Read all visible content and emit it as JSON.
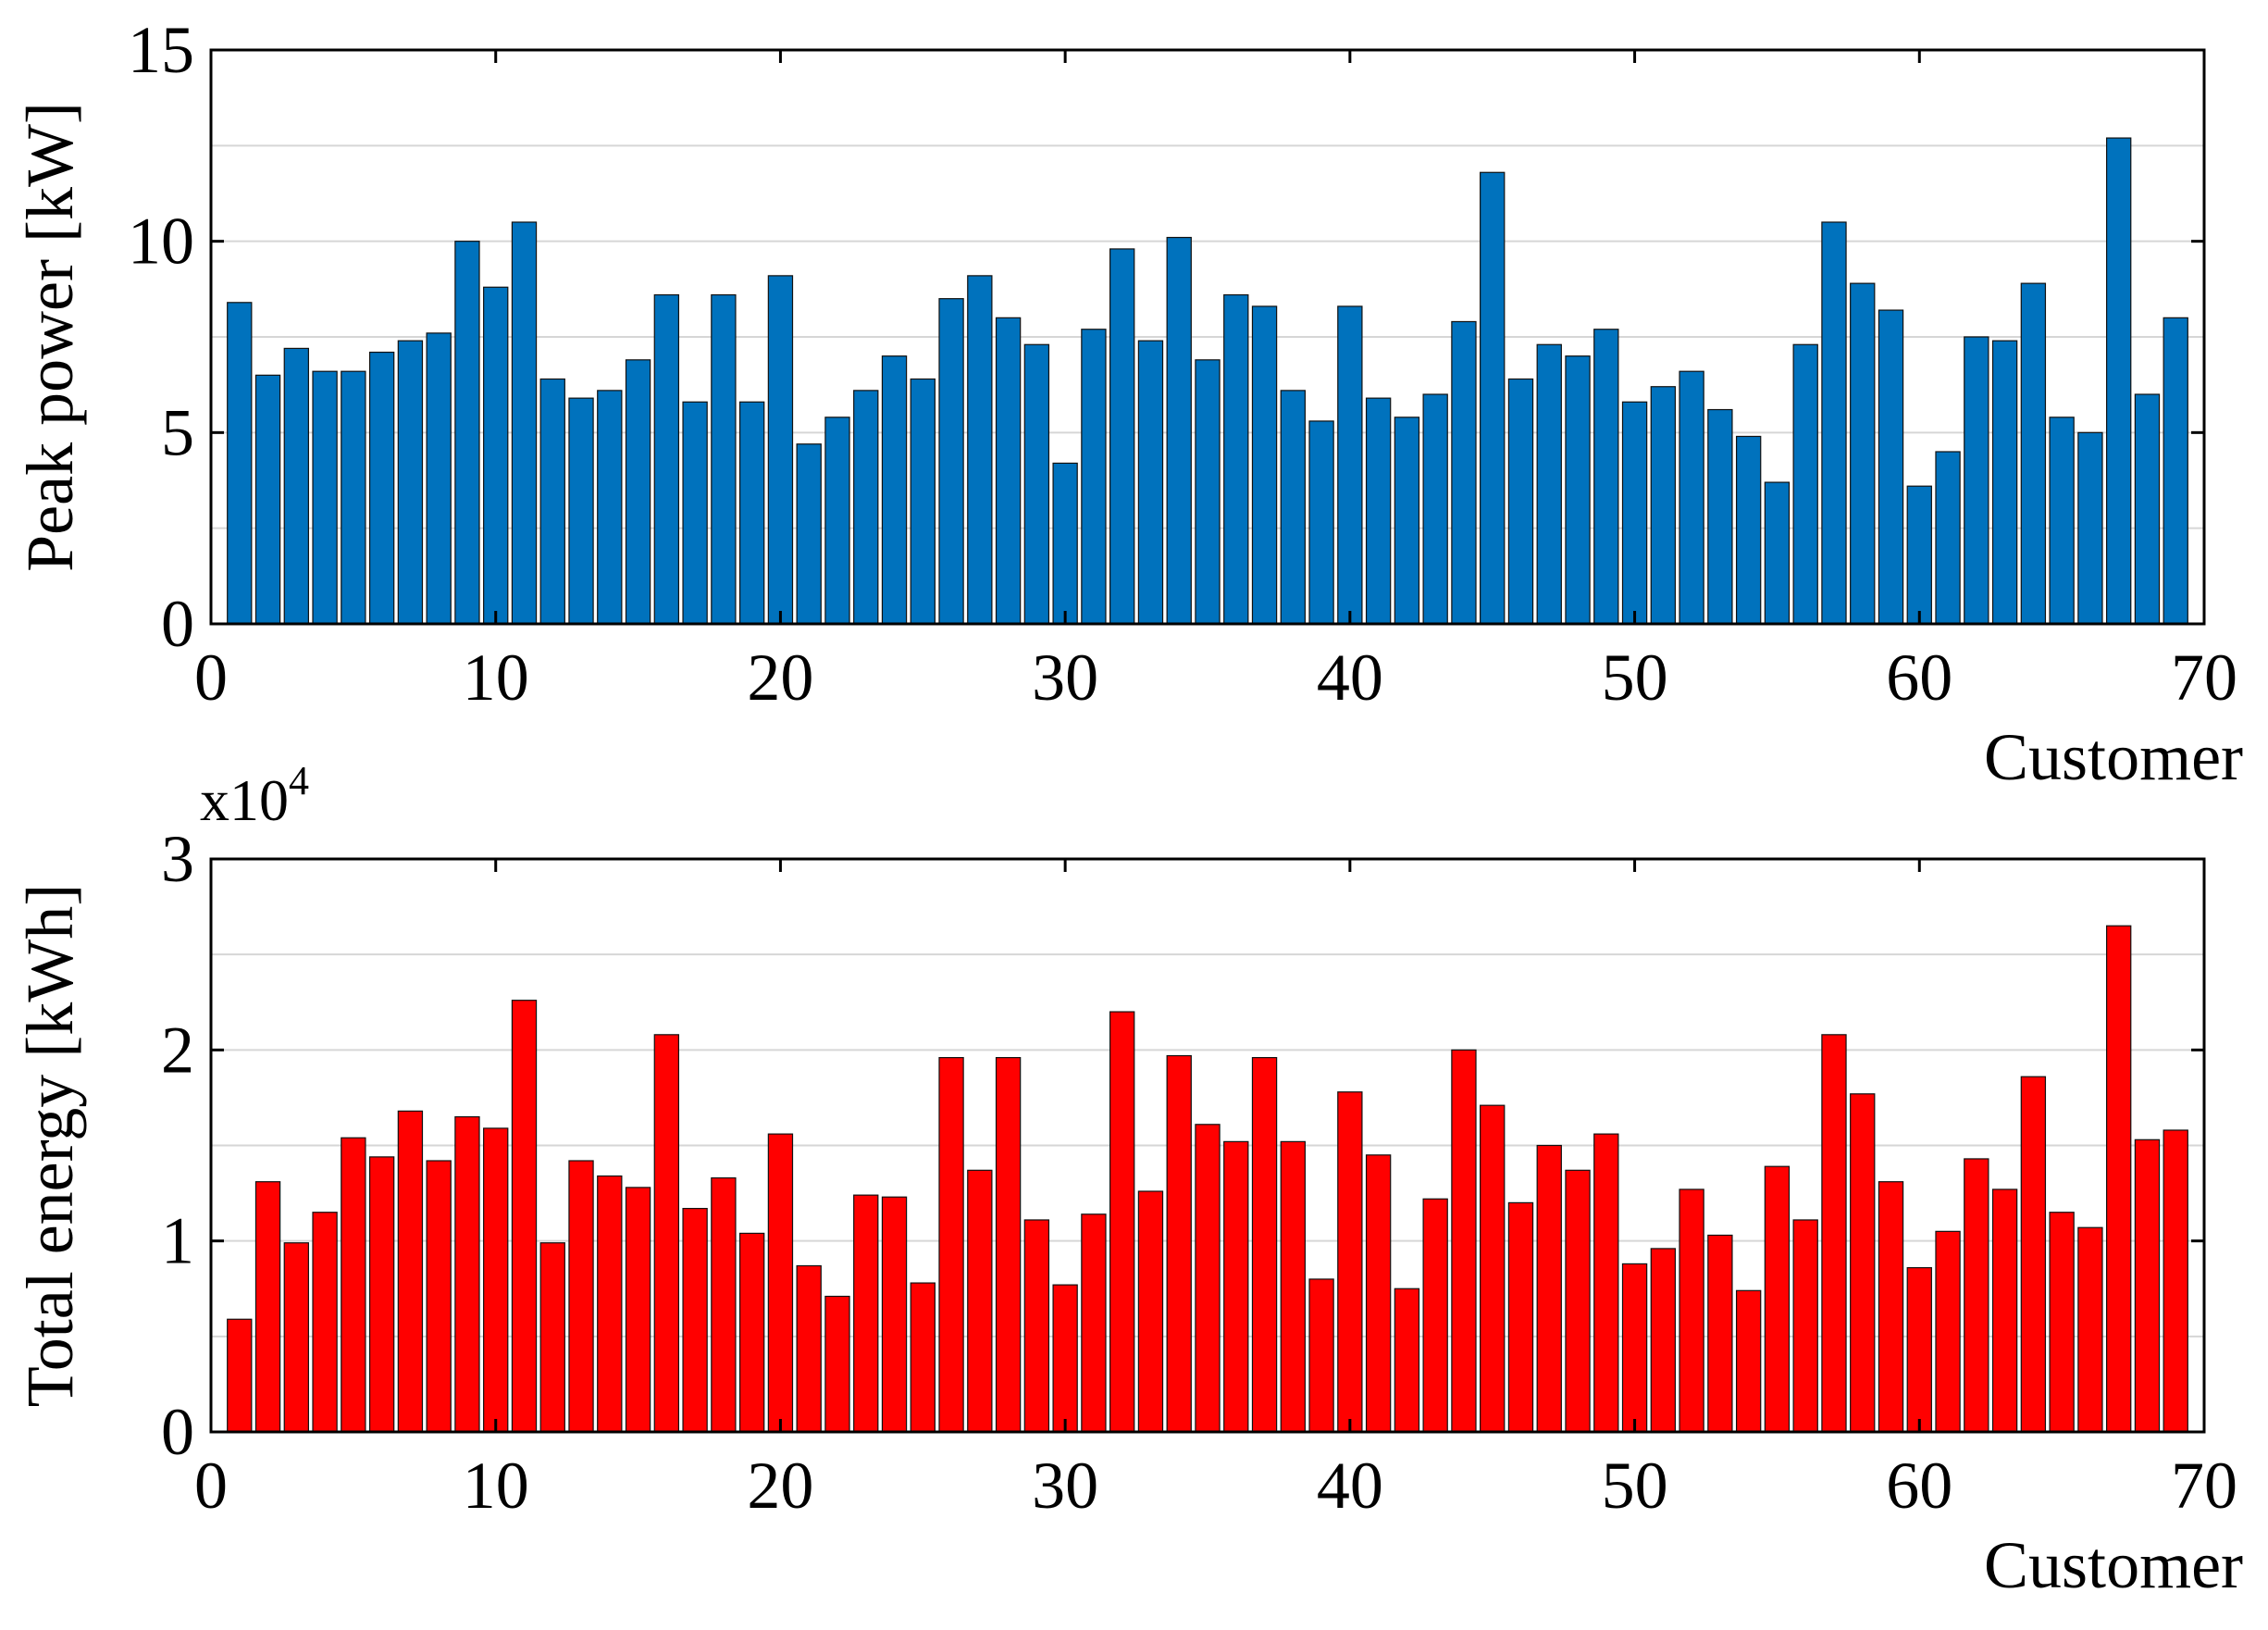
{
  "chart_data": [
    {
      "type": "bar",
      "xlabel": "Customer",
      "ylabel": "Peak power [kW]",
      "xlim": [
        0,
        70
      ],
      "ylim": [
        0,
        15
      ],
      "xticks": [
        "0",
        "10",
        "20",
        "30",
        "40",
        "50",
        "60",
        "70"
      ],
      "yticks": [
        "0",
        "5",
        "10",
        "15"
      ],
      "grid": true,
      "color": "#0072BD",
      "x": [
        1,
        2,
        3,
        4,
        5,
        6,
        7,
        8,
        9,
        10,
        11,
        12,
        13,
        14,
        15,
        16,
        17,
        18,
        19,
        20,
        21,
        22,
        23,
        24,
        25,
        26,
        27,
        28,
        29,
        30,
        31,
        32,
        33,
        34,
        35,
        36,
        37,
        38,
        39,
        40,
        41,
        42,
        43,
        44,
        45,
        46,
        47,
        48,
        49,
        50,
        51,
        52,
        53,
        54,
        55,
        56,
        57,
        58,
        59,
        60,
        61,
        62,
        63,
        64,
        65,
        66,
        67,
        68,
        69
      ],
      "values": [
        8.4,
        6.5,
        7.2,
        6.6,
        6.6,
        7.1,
        7.4,
        7.6,
        10.0,
        8.8,
        10.5,
        6.4,
        5.9,
        6.1,
        6.9,
        8.6,
        5.8,
        8.6,
        5.8,
        9.1,
        4.7,
        5.4,
        6.1,
        7.0,
        6.4,
        8.5,
        9.1,
        8.0,
        7.3,
        4.2,
        7.7,
        9.8,
        7.4,
        10.1,
        6.9,
        8.6,
        8.3,
        6.1,
        5.3,
        8.3,
        5.9,
        5.4,
        6.0,
        7.9,
        11.8,
        6.4,
        7.3,
        7.0,
        7.7,
        5.8,
        6.2,
        6.6,
        5.6,
        4.9,
        3.7,
        7.3,
        10.5,
        8.9,
        8.2,
        3.6,
        4.5,
        7.5,
        7.4,
        8.9,
        5.4,
        5.0,
        12.7,
        6.0,
        8.0
      ]
    },
    {
      "type": "bar",
      "xlabel": "Customer",
      "ylabel": "Total energy [kWh]",
      "multiplier": "x10",
      "multiplier_exp": "4",
      "xlim": [
        0,
        70
      ],
      "ylim": [
        0,
        3
      ],
      "xticks": [
        "0",
        "10",
        "20",
        "30",
        "40",
        "50",
        "60",
        "70"
      ],
      "yticks": [
        "0",
        "1",
        "2",
        "3"
      ],
      "grid": true,
      "color": "#FF0000",
      "x": [
        1,
        2,
        3,
        4,
        5,
        6,
        7,
        8,
        9,
        10,
        11,
        12,
        13,
        14,
        15,
        16,
        17,
        18,
        19,
        20,
        21,
        22,
        23,
        24,
        25,
        26,
        27,
        28,
        29,
        30,
        31,
        32,
        33,
        34,
        35,
        36,
        37,
        38,
        39,
        40,
        41,
        42,
        43,
        44,
        45,
        46,
        47,
        48,
        49,
        50,
        51,
        52,
        53,
        54,
        55,
        56,
        57,
        58,
        59,
        60,
        61,
        62,
        63,
        64,
        65,
        66,
        67,
        68,
        69
      ],
      "values": [
        0.59,
        1.31,
        0.99,
        1.15,
        1.54,
        1.44,
        1.68,
        1.42,
        1.65,
        1.59,
        2.26,
        0.99,
        1.42,
        1.34,
        1.28,
        2.08,
        1.17,
        1.33,
        1.04,
        1.56,
        0.87,
        0.71,
        1.24,
        1.23,
        0.78,
        1.96,
        1.37,
        1.96,
        1.11,
        0.77,
        1.14,
        2.2,
        1.26,
        1.97,
        1.61,
        1.52,
        1.96,
        1.52,
        0.8,
        1.78,
        1.45,
        0.75,
        1.22,
        2.0,
        1.71,
        1.2,
        1.5,
        1.37,
        1.56,
        0.88,
        0.96,
        1.27,
        1.03,
        0.74,
        1.39,
        1.11,
        2.08,
        1.77,
        1.31,
        0.86,
        1.05,
        1.43,
        1.27,
        1.86,
        1.15,
        1.07,
        2.65,
        1.53,
        1.58
      ]
    }
  ]
}
